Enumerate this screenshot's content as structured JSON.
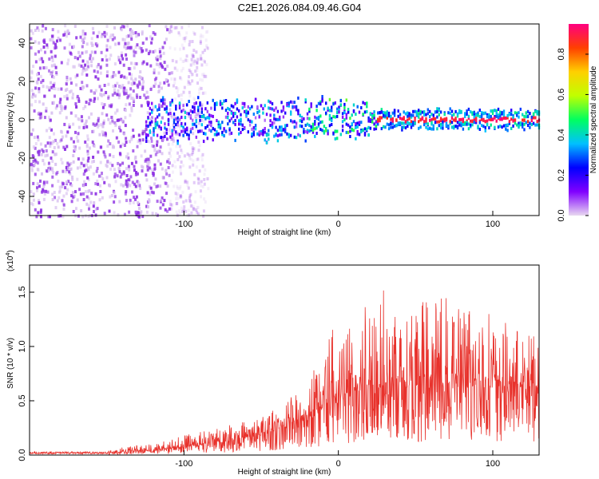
{
  "title": "C2E1.2026.084.09.46.G04",
  "chart_data": [
    {
      "type": "heatmap",
      "xlabel": "Height of straight line (km)",
      "ylabel": "Frequency (Hz)",
      "xlim": [
        -200,
        130
      ],
      "ylim": [
        -50,
        50
      ],
      "x_ticks": [
        -100,
        0,
        100
      ],
      "y_ticks": [
        -40,
        -20,
        0,
        20,
        40
      ],
      "colorbar": {
        "label": "Normalized spectral amplitude",
        "range": [
          0,
          0.95
        ],
        "ticks": [
          0.0,
          0.2,
          0.4,
          0.6,
          0.8
        ],
        "colors": [
          "#e8d8f0",
          "#8000ff",
          "#0000ff",
          "#00c0ff",
          "#00ff60",
          "#c0ff00",
          "#ffd000",
          "#ff4000",
          "#ff0080"
        ]
      },
      "signal_band_center_hz": 0,
      "noise_region_km": [
        -200,
        -110
      ]
    },
    {
      "type": "line",
      "xlabel": "Height of straight line (km)",
      "ylabel": "SNR (10 * v/v)",
      "y_exponent_label": "(x10",
      "y_exponent_power": "4",
      "y_exponent_close": ")",
      "xlim": [
        -200,
        130
      ],
      "ylim": [
        0.0,
        1.75
      ],
      "x_ticks": [
        -100,
        0,
        100
      ],
      "y_ticks": [
        0.0,
        0.5,
        1.0,
        1.5
      ],
      "color": "#e8322c",
      "envelope": {
        "x": [
          -200,
          -150,
          -125,
          -100,
          -75,
          -50,
          -35,
          -25,
          -15,
          -5,
          5,
          15,
          25,
          35,
          50,
          65,
          80,
          95,
          110,
          130
        ],
        "base": [
          0.01,
          0.02,
          0.04,
          0.07,
          0.12,
          0.18,
          0.24,
          0.3,
          0.38,
          0.45,
          0.52,
          0.58,
          0.6,
          0.62,
          0.62,
          0.62,
          0.62,
          0.62,
          0.62,
          0.62
        ],
        "top": [
          0.03,
          0.05,
          0.1,
          0.18,
          0.26,
          0.35,
          0.48,
          0.62,
          0.85,
          1.15,
          1.25,
          1.45,
          1.55,
          1.5,
          1.45,
          1.45,
          1.45,
          1.35,
          1.2,
          1.1
        ]
      }
    }
  ]
}
